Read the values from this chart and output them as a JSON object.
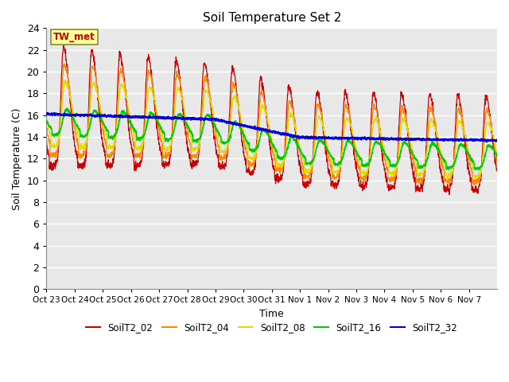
{
  "title": "Soil Temperature Set 2",
  "xlabel": "Time",
  "ylabel": "Soil Temperature (C)",
  "ylim": [
    0,
    24
  ],
  "yticks": [
    0,
    2,
    4,
    6,
    8,
    10,
    12,
    14,
    16,
    18,
    20,
    22,
    24
  ],
  "bg_color": "#e8e8e8",
  "annotation_text": "TW_met",
  "annotation_box_color": "#ffff99",
  "annotation_box_edge": "#cc0000",
  "series_colors": {
    "SoilT2_02": "#cc0000",
    "SoilT2_04": "#ff8800",
    "SoilT2_08": "#dddd00",
    "SoilT2_16": "#00cc00",
    "SoilT2_32": "#0000dd"
  },
  "xtick_labels": [
    "Oct 23",
    "Oct 24",
    "Oct 25",
    "Oct 26",
    "Oct 27",
    "Oct 28",
    "Oct 29",
    "Oct 30",
    "Oct 31",
    "Nov 1",
    "Nov 2",
    "Nov 3",
    "Nov 4",
    "Nov 5",
    "Nov 6",
    "Nov 7"
  ],
  "n_days": 16,
  "points_per_day": 144,
  "legend_entries": [
    "SoilT2_02",
    "SoilT2_04",
    "SoilT2_08",
    "SoilT2_16",
    "SoilT2_32"
  ]
}
